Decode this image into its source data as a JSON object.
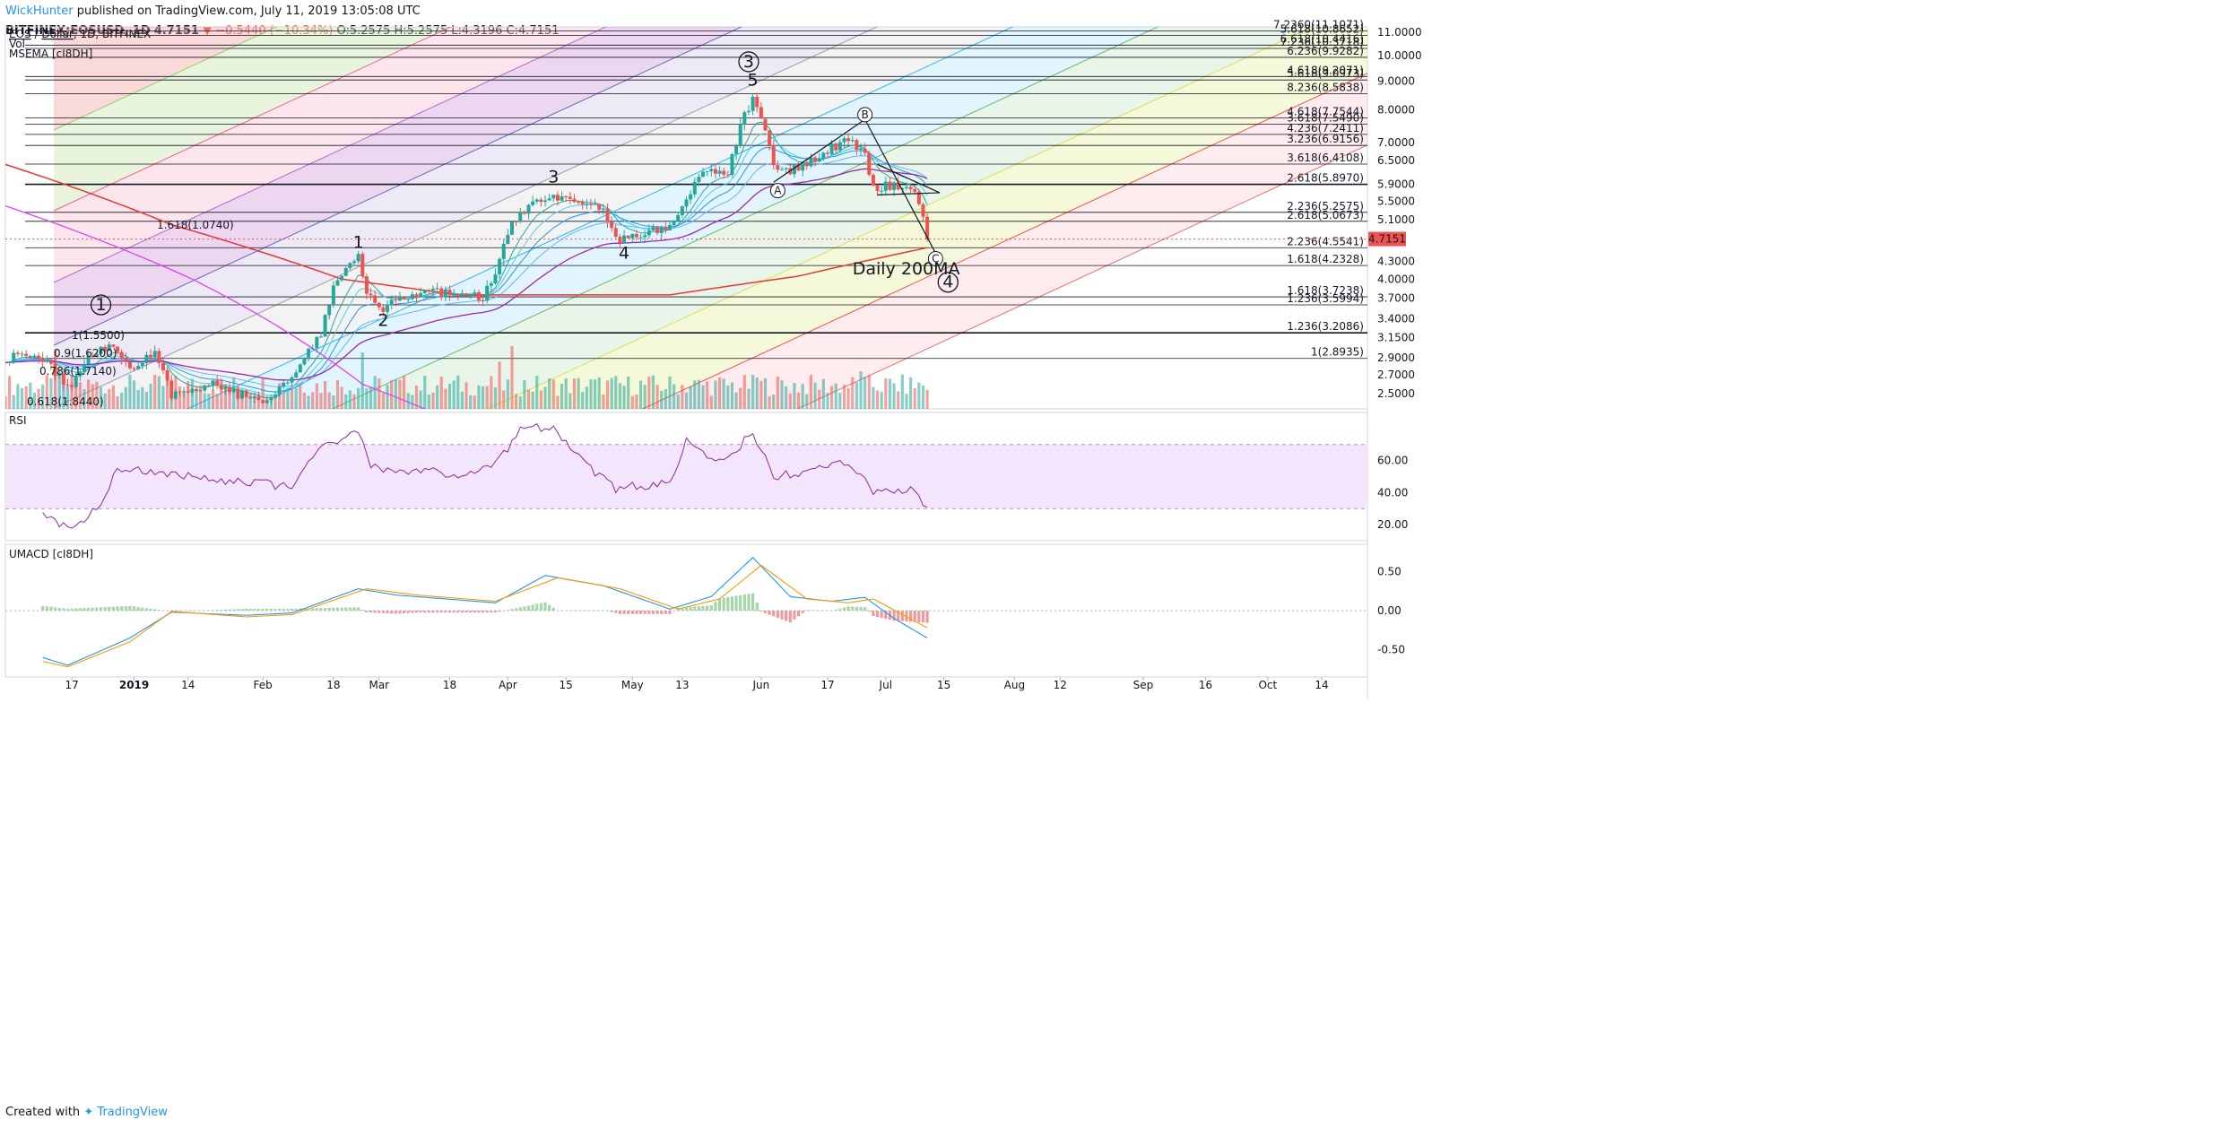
{
  "header": {
    "author": "WickHunter",
    "published_text": "published on TradingView.com, July 11, 2019 13:05:08 UTC",
    "symbol": "BITFINEX:EOSUSD, 1D",
    "last": "4.7151",
    "change": "▼ −0.5440 (−10.34%)",
    "o": "O:5.2575",
    "h": "H:5.2575",
    "l": "L:4.3196",
    "c": "C:4.7151"
  },
  "legend": {
    "pair_a": "EOS",
    "pair_sep": " / ",
    "pair_b": "Dollar",
    "rest": ", 1D, BITFINEX",
    "vol": "Vol",
    "msema": "MSEMA [cI8DH]",
    "rsi": "RSI",
    "umacd": "UMACD [cI8DH]"
  },
  "footer": {
    "created_with": "Created with",
    "brand": "TradingView"
  },
  "colors": {
    "up": "#26a69a",
    "down": "#ef5350",
    "ma200": "#e53935",
    "magenta": "#e040fb",
    "purple": "#9c27b0",
    "price_tag": "#ef5350",
    "rsi_line": "#8e24aa",
    "rsi_band": "#f3e5fb",
    "macd_line": "#2196f3",
    "signal_line": "#ff9800"
  },
  "chart_data": {
    "type": "candlestick",
    "title": "EOS / Dollar, 1D, BITFINEX",
    "x_ticks": [
      "17",
      "2019",
      "14",
      "Feb",
      "18",
      "Mar",
      "18",
      "Apr",
      "15",
      "May",
      "13",
      "Jun",
      "17",
      "Jul",
      "15",
      "Aug",
      "12",
      "Sep",
      "16",
      "Oct",
      "14"
    ],
    "price_axis_ticks": [
      "11.0000",
      "10.0000",
      "9.0000",
      "8.0000",
      "7.0000",
      "6.5000",
      "5.9000",
      "5.5000",
      "5.1000",
      "4.7151",
      "4.3000",
      "4.0000",
      "3.7000",
      "3.4000",
      "3.1500",
      "2.9000",
      "2.7000",
      "2.5000"
    ],
    "last_price": "4.7151",
    "price_anchors": [
      [
        "2018-12-10",
        2.9
      ],
      [
        "2018-12-16",
        2.55
      ],
      [
        "2018-12-22",
        2.95
      ],
      [
        "2018-12-27",
        3.05
      ],
      [
        "2018-12-31",
        2.75
      ],
      [
        "2019-01-06",
        2.95
      ],
      [
        "2019-01-10",
        2.5
      ],
      [
        "2019-01-20",
        2.6
      ],
      [
        "2019-02-01",
        2.4
      ],
      [
        "2019-02-08",
        2.7
      ],
      [
        "2019-02-15",
        3.2
      ],
      [
        "2019-02-18",
        3.9
      ],
      [
        "2019-02-24",
        4.35
      ],
      [
        "2019-02-26",
        3.75
      ],
      [
        "2019-03-02",
        3.55
      ],
      [
        "2019-03-05",
        3.7
      ],
      [
        "2019-03-12",
        3.8
      ],
      [
        "2019-03-20",
        3.75
      ],
      [
        "2019-03-26",
        3.7
      ],
      [
        "2019-03-29",
        4.1
      ],
      [
        "2019-04-02",
        5.0
      ],
      [
        "2019-04-06",
        5.4
      ],
      [
        "2019-04-12",
        5.55
      ],
      [
        "2019-04-18",
        5.45
      ],
      [
        "2019-04-24",
        5.3
      ],
      [
        "2019-04-27",
        4.7
      ],
      [
        "2019-05-04",
        4.85
      ],
      [
        "2019-05-10",
        4.9
      ],
      [
        "2019-05-14",
        5.6
      ],
      [
        "2019-05-18",
        6.3
      ],
      [
        "2019-05-24",
        6.1
      ],
      [
        "2019-05-27",
        7.5
      ],
      [
        "2019-05-30",
        8.4
      ],
      [
        "2019-06-01",
        7.8
      ],
      [
        "2019-06-04",
        6.3
      ],
      [
        "2019-06-08",
        6.2
      ],
      [
        "2019-06-12",
        6.4
      ],
      [
        "2019-06-18",
        6.85
      ],
      [
        "2019-06-22",
        7.1
      ],
      [
        "2019-06-26",
        6.6
      ],
      [
        "2019-06-28",
        5.85
      ],
      [
        "2019-07-03",
        5.85
      ],
      [
        "2019-07-08",
        5.75
      ],
      [
        "2019-07-10",
        5.25
      ],
      [
        "2019-07-11",
        4.7151
      ]
    ],
    "ma200": {
      "name": "Daily 200MA"
    },
    "volume_spikes": [
      [
        "2018-12-13",
        0.95
      ],
      [
        "2019-02-25",
        0.9
      ],
      [
        "2019-04-02",
        1.0
      ],
      [
        "2019-03-30",
        0.75
      ],
      [
        "2019-05-31",
        0.5
      ],
      [
        "2019-06-25",
        0.6
      ]
    ],
    "fib_levels": [
      [
        "7.2360(11.1071)",
        11.06
      ],
      [
        "5.618(10.8652)",
        10.87
      ],
      [
        "6.618(10.4416)",
        10.44
      ],
      [
        "7.236(10.3718)",
        10.3
      ],
      [
        "6.236(9.9282)",
        9.93
      ],
      [
        "4.618(9.2071)",
        9.18
      ],
      [
        "5.618(9.0973)",
        9.05
      ],
      [
        "8.236(8.5838)",
        8.55
      ],
      [
        "4.618(7.7544)",
        7.75
      ],
      [
        "3.618(7.5490)",
        7.55
      ],
      [
        "4.236(7.2411)",
        7.24
      ],
      [
        "3.236(6.9156)",
        6.92
      ],
      [
        "3.618(6.4108)",
        6.41
      ],
      [
        "2.618(5.8970)",
        5.9
      ],
      [
        "2.236(5.2575)",
        5.26
      ],
      [
        "2.618(5.0673)",
        5.07
      ],
      [
        "2.236(4.5541)",
        4.55
      ],
      [
        "1.618(4.2328)",
        4.23
      ],
      [
        "1.618(3.7238)",
        3.72
      ],
      [
        "1.236(3.5994)",
        3.6
      ],
      [
        "1.236(3.2086)",
        3.21
      ],
      [
        "1(2.8935)",
        2.89
      ]
    ],
    "left_fib_labels": [
      "1.618(1.0740)",
      "1(1.5500)",
      "0.9(1.6200)",
      "0.786(1.7140)",
      "0.618(1.8440)"
    ],
    "wave_labels": {
      "primary": [
        "1",
        "2",
        "3",
        "4",
        "5"
      ],
      "circled": [
        "1",
        "3",
        "4"
      ],
      "abc": [
        "A",
        "B",
        "C"
      ],
      "ma_label": "Daily 200MA"
    },
    "rsi": {
      "upper": 70,
      "lower": 30,
      "ticks": [
        "60.00",
        "40.00",
        "20.00"
      ],
      "anchors": [
        [
          "2018-12-10",
          25
        ],
        [
          "2018-12-16",
          18
        ],
        [
          "2018-12-24",
          30
        ],
        [
          "2018-12-28",
          55
        ],
        [
          "2019-01-20",
          48
        ],
        [
          "2019-02-08",
          44
        ],
        [
          "2019-02-15",
          68
        ],
        [
          "2019-02-24",
          80
        ],
        [
          "2019-02-27",
          55
        ],
        [
          "2019-03-20",
          52
        ],
        [
          "2019-03-29",
          58
        ],
        [
          "2019-04-04",
          78
        ],
        [
          "2019-04-12",
          82
        ],
        [
          "2019-04-18",
          62
        ],
        [
          "2019-04-27",
          42
        ],
        [
          "2019-05-10",
          47
        ],
        [
          "2019-05-14",
          72
        ],
        [
          "2019-05-22",
          60
        ],
        [
          "2019-05-30",
          76
        ],
        [
          "2019-06-04",
          50
        ],
        [
          "2019-06-12",
          52
        ],
        [
          "2019-06-18",
          56
        ],
        [
          "2019-06-22",
          60
        ],
        [
          "2019-06-28",
          40
        ],
        [
          "2019-07-08",
          42
        ],
        [
          "2019-07-11",
          30
        ]
      ]
    },
    "macd": {
      "ticks": [
        "0.50",
        "0.00",
        "-0.50"
      ],
      "line_anchors": [
        [
          "2018-12-10",
          -0.6
        ],
        [
          "2018-12-16",
          -0.7
        ],
        [
          "2018-12-31",
          -0.35
        ],
        [
          "2019-01-10",
          -0.02
        ],
        [
          "2019-01-28",
          -0.06
        ],
        [
          "2019-02-08",
          -0.03
        ],
        [
          "2019-02-24",
          0.28
        ],
        [
          "2019-03-05",
          0.2
        ],
        [
          "2019-03-29",
          0.1
        ],
        [
          "2019-04-10",
          0.45
        ],
        [
          "2019-04-24",
          0.32
        ],
        [
          "2019-05-10",
          0.02
        ],
        [
          "2019-05-20",
          0.18
        ],
        [
          "2019-05-30",
          0.68
        ],
        [
          "2019-06-08",
          0.18
        ],
        [
          "2019-06-18",
          0.12
        ],
        [
          "2019-06-26",
          0.17
        ],
        [
          "2019-07-03",
          -0.1
        ],
        [
          "2019-07-11",
          -0.35
        ]
      ],
      "signal_anchors": [
        [
          "2018-12-10",
          -0.65
        ],
        [
          "2018-12-16",
          -0.72
        ],
        [
          "2018-12-31",
          -0.4
        ],
        [
          "2019-01-10",
          -0.01
        ],
        [
          "2019-01-28",
          -0.08
        ],
        [
          "2019-02-08",
          -0.05
        ],
        [
          "2019-02-26",
          0.28
        ],
        [
          "2019-03-10",
          0.2
        ],
        [
          "2019-03-29",
          0.12
        ],
        [
          "2019-04-13",
          0.42
        ],
        [
          "2019-04-28",
          0.28
        ],
        [
          "2019-05-12",
          0.02
        ],
        [
          "2019-05-22",
          0.15
        ],
        [
          "2019-06-01",
          0.58
        ],
        [
          "2019-06-12",
          0.15
        ],
        [
          "2019-06-22",
          0.1
        ],
        [
          "2019-06-28",
          0.15
        ],
        [
          "2019-07-05",
          -0.05
        ],
        [
          "2019-07-11",
          -0.22
        ]
      ]
    }
  }
}
